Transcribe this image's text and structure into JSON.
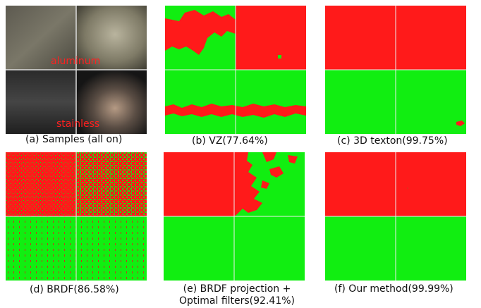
{
  "figure": {
    "samples": {
      "label_top": "aluminum",
      "label_bottom": "stainless",
      "caption": "(a) Samples (all on)"
    },
    "panels": [
      {
        "id": "vz",
        "caption": "(b) VZ(77.64%)"
      },
      {
        "id": "texton",
        "caption": "(c) 3D texton(99.75%)"
      },
      {
        "id": "brdf",
        "caption": "(d) BRDF(86.58%)"
      },
      {
        "id": "brdf_proj",
        "caption_line1": "(e) BRDF projection +",
        "caption_line2": "Optimal filters(92.41%)"
      },
      {
        "id": "ours",
        "caption": "(f) Our method(99.99%)"
      }
    ],
    "colors": {
      "red": "#ff1a1a",
      "green": "#11ee11"
    }
  }
}
